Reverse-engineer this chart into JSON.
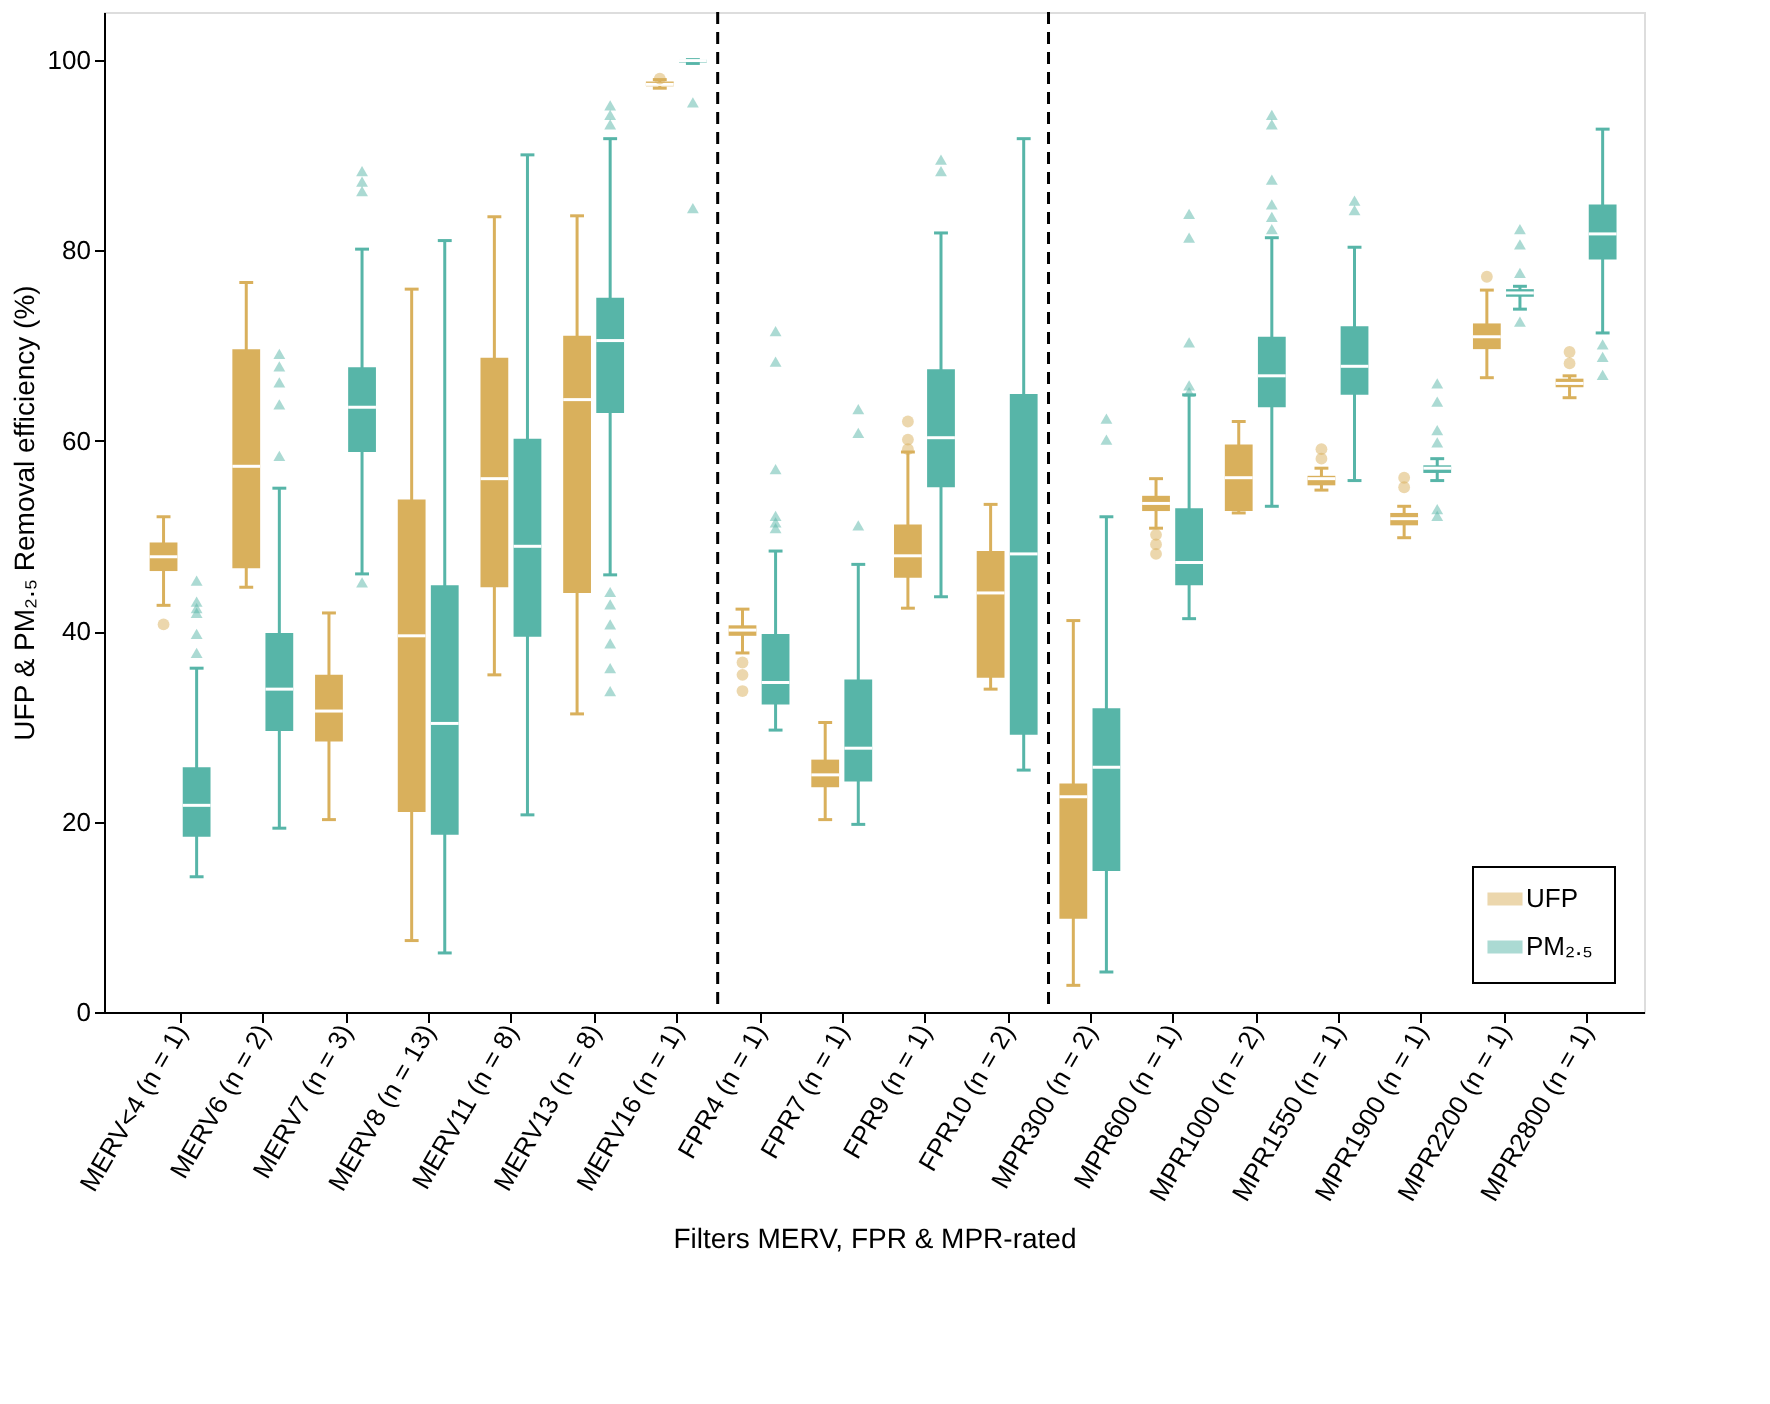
{
  "chart_data": {
    "type": "box",
    "xlabel": "Filters MERV, FPR & MPR-rated",
    "ylabel": "UFP & PM₂.₅ Removal efficiency (%)",
    "categories": [
      "MERV<4 (n = 1)",
      "MERV6 (n = 2)",
      "MERV7 (n = 3)",
      "MERV8 (n = 13)",
      "MERV11 (n = 8)",
      "MERV13 (n = 8)",
      "MERV16 (n = 1)",
      "FPR4 (n = 1)",
      "FPR7 (n = 1)",
      "FPR9 (n = 1)",
      "FPR10 (n = 2)",
      "MPR300 (n = 2)",
      "MPR600 (n = 1)",
      "MPR1000 (n = 2)",
      "MPR1550 (n = 1)",
      "MPR1900 (n = 1)",
      "MPR2200 (n = 1)",
      "MPR2800 (n = 1)"
    ],
    "ylim": [
      0,
      105
    ],
    "yticks": [
      0,
      20,
      40,
      60,
      80,
      100
    ],
    "grid": false,
    "legend": "bottom right",
    "series": [
      {
        "name": "UFP",
        "color": "#d9b05c",
        "marker": "circle",
        "boxes": [
          {
            "low": 42.7,
            "q1": 46.3,
            "median": 47.8,
            "q3": 49.3,
            "high": 52,
            "outliers": [
              40.7
            ]
          },
          {
            "low": 44.6,
            "q1": 46.6,
            "median": 57.3,
            "q3": 69.6,
            "high": 76.6
          },
          {
            "low": 20.2,
            "q1": 28.4,
            "median": 31.6,
            "q3": 35.4,
            "high": 41.9
          },
          {
            "low": 7.5,
            "q1": 21,
            "median": 39.5,
            "q3": 53.8,
            "high": 75.9
          },
          {
            "low": 35.4,
            "q1": 44.6,
            "median": 56,
            "q3": 68.7,
            "high": 83.5
          },
          {
            "low": 31.3,
            "q1": 44,
            "median": 64.3,
            "q3": 71,
            "high": 83.6
          },
          {
            "low": 97,
            "q1": 97.2,
            "median": 97.4,
            "q3": 97.7,
            "high": 97.9,
            "outliers": [
              98
            ]
          },
          {
            "low": 37.7,
            "q1": 39.5,
            "median": 40.1,
            "q3": 40.6,
            "high": 42.3,
            "outliers": [
              36.7,
              35.4,
              33.7
            ]
          },
          {
            "low": 20.2,
            "q1": 23.6,
            "median": 24.9,
            "q3": 26.5,
            "high": 30.4
          },
          {
            "low": 42.4,
            "q1": 45.6,
            "median": 47.9,
            "q3": 51.2,
            "high": 58.8,
            "outliers": [
              62,
              60.1,
              59.1
            ]
          },
          {
            "low": 33.9,
            "q1": 35.1,
            "median": 44,
            "q3": 48.4,
            "high": 53.3
          },
          {
            "low": 2.8,
            "q1": 9.8,
            "median": 22.6,
            "q3": 24,
            "high": 41.1
          },
          {
            "low": 50.8,
            "q1": 52.6,
            "median": 53.4,
            "q3": 54.2,
            "high": 56,
            "outliers": [
              50.1,
              49.1,
              48.1
            ]
          },
          {
            "low": 52.4,
            "q1": 52.6,
            "median": 56.1,
            "q3": 59.6,
            "high": 62
          },
          {
            "low": 54.8,
            "q1": 55.3,
            "median": 56,
            "q3": 56.3,
            "high": 57.1,
            "outliers": [
              59.1,
              58.1
            ]
          },
          {
            "low": 49.8,
            "q1": 51.1,
            "median": 51.8,
            "q3": 52.4,
            "high": 53.1,
            "outliers": [
              56.1,
              55.1
            ]
          },
          {
            "low": 66.6,
            "q1": 69.6,
            "median": 70.9,
            "q3": 72.3,
            "high": 75.8,
            "outliers": [
              77.2
            ]
          },
          {
            "low": 64.5,
            "q1": 65.6,
            "median": 66,
            "q3": 66.5,
            "high": 66.8,
            "outliers": [
              69.3,
              68.1
            ]
          }
        ]
      },
      {
        "name": "PM₂.₅",
        "color": "#57b5a8",
        "marker": "triangle",
        "boxes": [
          {
            "low": 14.2,
            "q1": 18.4,
            "median": 21.7,
            "q3": 25.7,
            "high": 36.1,
            "outliers": [
              45.3,
              43.1,
              42.4,
              41.9,
              39.7,
              37.7
            ]
          },
          {
            "low": 19.3,
            "q1": 29.5,
            "median": 33.9,
            "q3": 39.8,
            "high": 55,
            "outliers": [
              69.1,
              67.8,
              66.1,
              63.8,
              58.4
            ]
          },
          {
            "low": 46,
            "q1": 58.8,
            "median": 63.5,
            "q3": 67.7,
            "high": 80.1,
            "outliers": [
              88.3,
              87.2,
              86.2,
              45.1
            ]
          },
          {
            "low": 6.2,
            "q1": 18.6,
            "median": 30.3,
            "q3": 44.8,
            "high": 81
          },
          {
            "low": 20.7,
            "q1": 39.4,
            "median": 48.9,
            "q3": 60.2,
            "high": 90
          },
          {
            "low": 45.9,
            "q1": 62.9,
            "median": 70.5,
            "q3": 75,
            "high": 91.7,
            "outliers": [
              95.2,
              94.2,
              93.2,
              44.1,
              42.8,
              40.7,
              38.7,
              36.1,
              33.7
            ]
          },
          {
            "low": 99.6,
            "q1": 99.7,
            "median": 99.9,
            "q3": 100,
            "high": 100,
            "outliers": [
              95.5,
              84.4
            ]
          },
          {
            "low": 29.6,
            "q1": 32.3,
            "median": 34.6,
            "q3": 39.7,
            "high": 48.4,
            "outliers": [
              71.5,
              68.3,
              57,
              52.1,
              51.4,
              50.8
            ]
          },
          {
            "low": 19.7,
            "q1": 24.2,
            "median": 27.7,
            "q3": 34.9,
            "high": 47,
            "outliers": [
              63.3,
              60.8,
              51.1
            ]
          },
          {
            "low": 43.6,
            "q1": 55.1,
            "median": 60.3,
            "q3": 67.5,
            "high": 81.8,
            "outliers": [
              89.5,
              88.3
            ]
          },
          {
            "low": 25.4,
            "q1": 29.1,
            "median": 48.1,
            "q3": 64.9,
            "high": 91.7
          },
          {
            "low": 4.2,
            "q1": 14.8,
            "median": 25.7,
            "q3": 31.9,
            "high": 52,
            "outliers": [
              62.3,
              60.1
            ]
          },
          {
            "low": 41.3,
            "q1": 44.8,
            "median": 47.2,
            "q3": 52.9,
            "high": 64.8,
            "outliers": [
              83.8,
              81.3,
              70.3,
              65.8,
              65.1
            ]
          },
          {
            "low": 53.1,
            "q1": 63.5,
            "median": 66.8,
            "q3": 70.9,
            "high": 81.3,
            "outliers": [
              94.2,
              93.2,
              87.4,
              84.8,
              83.5,
              82.2
            ]
          },
          {
            "low": 55.8,
            "q1": 64.8,
            "median": 67.8,
            "q3": 72,
            "high": 80.3,
            "outliers": [
              85.2,
              84.2
            ]
          },
          {
            "low": 55.8,
            "q1": 56.6,
            "median": 57.1,
            "q3": 57.4,
            "high": 58.1,
            "outliers": [
              66,
              64.1,
              61.1,
              59.8,
              52.8,
              52.1
            ]
          },
          {
            "low": 73.8,
            "q1": 75.1,
            "median": 75.5,
            "q3": 75.9,
            "high": 76.2,
            "outliers": [
              82.2,
              80.6,
              77.6,
              72.5
            ]
          },
          {
            "low": 71.3,
            "q1": 79,
            "median": 81.7,
            "q3": 84.8,
            "high": 92.7,
            "outliers": [
              70.1,
              68.8,
              66.9
            ]
          }
        ]
      }
    ]
  }
}
